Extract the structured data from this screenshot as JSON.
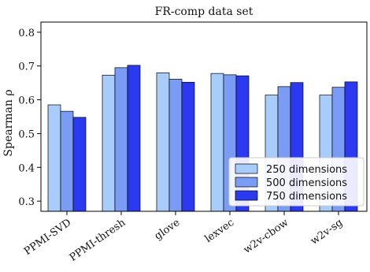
{
  "chart_data": {
    "type": "bar",
    "title": "FR-comp data set",
    "xlabel": "",
    "ylabel": "Spearman ρ",
    "ylim": [
      0.27,
      0.83
    ],
    "yticks": [
      "0.3",
      "0.4",
      "0.5",
      "0.6",
      "0.7",
      "0.8"
    ],
    "categories": [
      "PPMI-SVD",
      "PPMI-thresh",
      "glove",
      "lexvec",
      "w2v-cbow",
      "w2v-sg"
    ],
    "series": [
      {
        "name": "250 dimensions",
        "color": "#a8cdfb",
        "values": [
          0.585,
          0.673,
          0.68,
          0.678,
          0.614,
          0.614
        ]
      },
      {
        "name": "500 dimensions",
        "color": "#7b9cf5",
        "values": [
          0.566,
          0.695,
          0.661,
          0.674,
          0.639,
          0.637
        ]
      },
      {
        "name": "750 dimensions",
        "color": "#2b3af0",
        "values": [
          0.548,
          0.702,
          0.652,
          0.671,
          0.651,
          0.653
        ]
      }
    ],
    "legend_position": "bottom-right",
    "grid": false
  }
}
